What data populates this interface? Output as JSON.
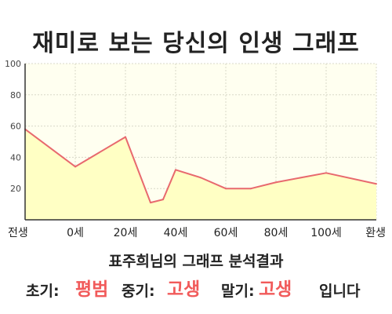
{
  "title": "재미로 보는 당신의 인생 그래프",
  "subtitle": "표주희님의 그래프 분석결과",
  "stages": {
    "early_label": "초기:",
    "early_value": "평범",
    "middle_label": "중기:",
    "middle_value": "고생",
    "late_label": "말기:",
    "late_value": "고생",
    "suffix": "입니다"
  },
  "colors": {
    "line": "#e8696e",
    "fill": "#ffffc4",
    "plot_bg": "#fffff0",
    "highlight": "#f15a5a"
  },
  "chart_data": {
    "type": "area",
    "x_labels": [
      "전생",
      "0세",
      "20세",
      "40세",
      "60세",
      "80세",
      "100세",
      "환생"
    ],
    "x": [
      -20,
      0,
      20,
      30,
      35,
      40,
      50,
      60,
      70,
      80,
      100,
      120
    ],
    "values": [
      58,
      34,
      53,
      11,
      13,
      32,
      27,
      20,
      20,
      24,
      30,
      23
    ],
    "ylim": [
      0,
      100
    ],
    "yticks": [
      20,
      40,
      60,
      80,
      100
    ],
    "xlim": [
      -20,
      120
    ],
    "grid": true
  }
}
